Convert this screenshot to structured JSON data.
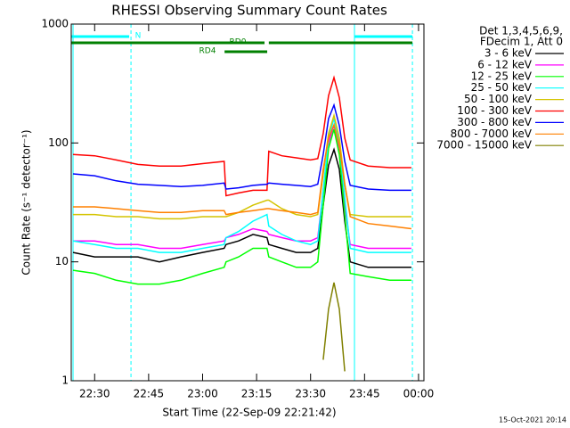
{
  "chart_data": {
    "type": "line",
    "title": "RHESSI Observing Summary Count Rates",
    "x_label": "Start Time (22-Sep-09 22:21:42)",
    "y_label": "Count Rate (s⁻¹ detector⁻¹)",
    "legend_header": [
      "Det 1,3,4,5,6,9,",
      "FDecim 1, Att 0"
    ],
    "footer": "15-Oct-2021 20:14",
    "log_y": true,
    "xlim": [
      23.5,
      121.5
    ],
    "ylim": [
      1,
      1000
    ],
    "xticks": [
      {
        "value": 30,
        "label": "22:30"
      },
      {
        "value": 45,
        "label": "22:45"
      },
      {
        "value": 60,
        "label": "23:00"
      },
      {
        "value": 75,
        "label": "23:15"
      },
      {
        "value": 90,
        "label": "23:30"
      },
      {
        "value": 105,
        "label": "23:45"
      },
      {
        "value": 120,
        "label": "00:00"
      }
    ],
    "yticks": [
      1,
      10,
      100,
      1000
    ],
    "x": [
      24,
      30,
      36,
      42,
      48,
      54,
      60,
      66,
      66.5,
      70,
      74,
      77.9,
      78.4,
      82,
      86,
      90,
      92,
      93.5,
      95,
      96.5,
      98,
      99.5,
      101,
      106,
      112,
      118
    ],
    "series": [
      {
        "name": "3 - 6 keV",
        "color": "#000000",
        "values": [
          12,
          11,
          11,
          11,
          10,
          11,
          12,
          13,
          14,
          15,
          17,
          16,
          14,
          13,
          12,
          12,
          13,
          30,
          65,
          88,
          60,
          22,
          10,
          9,
          9,
          9
        ]
      },
      {
        "name": "6 - 12 keV",
        "color": "#ff00ff",
        "values": [
          15,
          15,
          14,
          14,
          13,
          13,
          14,
          15,
          16,
          17,
          19,
          18,
          17,
          16,
          15,
          15,
          16,
          40,
          100,
          140,
          90,
          30,
          14,
          13,
          13,
          13
        ]
      },
      {
        "name": "12 - 25 keV",
        "color": "#00ff00",
        "values": [
          8.5,
          8,
          7,
          6.5,
          6.5,
          7,
          8,
          9,
          10,
          11,
          13,
          13,
          11,
          10,
          9,
          9,
          10,
          30,
          90,
          130,
          80,
          25,
          8,
          7.5,
          7,
          7
        ]
      },
      {
        "name": "25 - 50 keV",
        "color": "#00ffff",
        "values": [
          15,
          14,
          13,
          13,
          12,
          12,
          13,
          14,
          16,
          18,
          22,
          25,
          20,
          17,
          15,
          14,
          15,
          40,
          110,
          160,
          100,
          35,
          13,
          12,
          12,
          12
        ]
      },
      {
        "name": "50 - 100 keV",
        "color": "#d4c400",
        "values": [
          25,
          25,
          24,
          24,
          23,
          23,
          24,
          24,
          24,
          26,
          30,
          33,
          33,
          28,
          25,
          24,
          25,
          55,
          120,
          170,
          110,
          45,
          25,
          24,
          24,
          24
        ]
      },
      {
        "name": "100 - 300 keV",
        "color": "#ff0000",
        "values": [
          80,
          78,
          72,
          66,
          64,
          64,
          67,
          70,
          36,
          38,
          40,
          40,
          85,
          78,
          75,
          72,
          74,
          120,
          250,
          355,
          240,
          110,
          72,
          64,
          62,
          62
        ]
      },
      {
        "name": "300 - 800 keV",
        "color": "#0000ff",
        "values": [
          55,
          53,
          48,
          45,
          44,
          43,
          44,
          46,
          41,
          42,
          44,
          45,
          46,
          45,
          44,
          43,
          45,
          80,
          160,
          208,
          140,
          70,
          44,
          41,
          40,
          40
        ]
      },
      {
        "name": "800 - 7000 keV",
        "color": "#ff8000",
        "values": [
          29,
          29,
          28,
          27,
          26,
          26,
          27,
          27,
          25,
          26,
          27,
          28,
          28,
          27,
          26,
          25,
          26,
          60,
          110,
          142,
          95,
          45,
          24,
          21,
          20,
          19
        ]
      },
      {
        "name": "7000 - 15000 keV",
        "color": "#808000",
        "values": [
          null,
          null,
          null,
          null,
          null,
          null,
          null,
          null,
          null,
          null,
          null,
          null,
          null,
          null,
          null,
          null,
          null,
          1.5,
          4,
          6.7,
          4,
          1.2,
          null,
          null,
          null,
          null
        ]
      }
    ],
    "intervals": [
      {
        "label": "N",
        "color": "#00ffff",
        "segments": [
          [
            23.5,
            39.6
          ],
          [
            102.2,
            118.3
          ]
        ]
      },
      {
        "label": "RD0",
        "color": "#008000",
        "segments": [
          [
            23.5,
            77.2
          ],
          [
            78.4,
            118.3
          ]
        ]
      },
      {
        "label": "RD4",
        "color": "#008000",
        "segments": [
          [
            66.1,
            77.95
          ]
        ]
      }
    ],
    "vlines": [
      {
        "x": 24,
        "color": "#00ffff",
        "dashed": false
      },
      {
        "x": 40.1,
        "color": "#00ffff",
        "dashed": true
      },
      {
        "x": 102.2,
        "color": "#00ffff",
        "dashed": false
      },
      {
        "x": 118.3,
        "color": "#00ffff",
        "dashed": true
      }
    ]
  }
}
